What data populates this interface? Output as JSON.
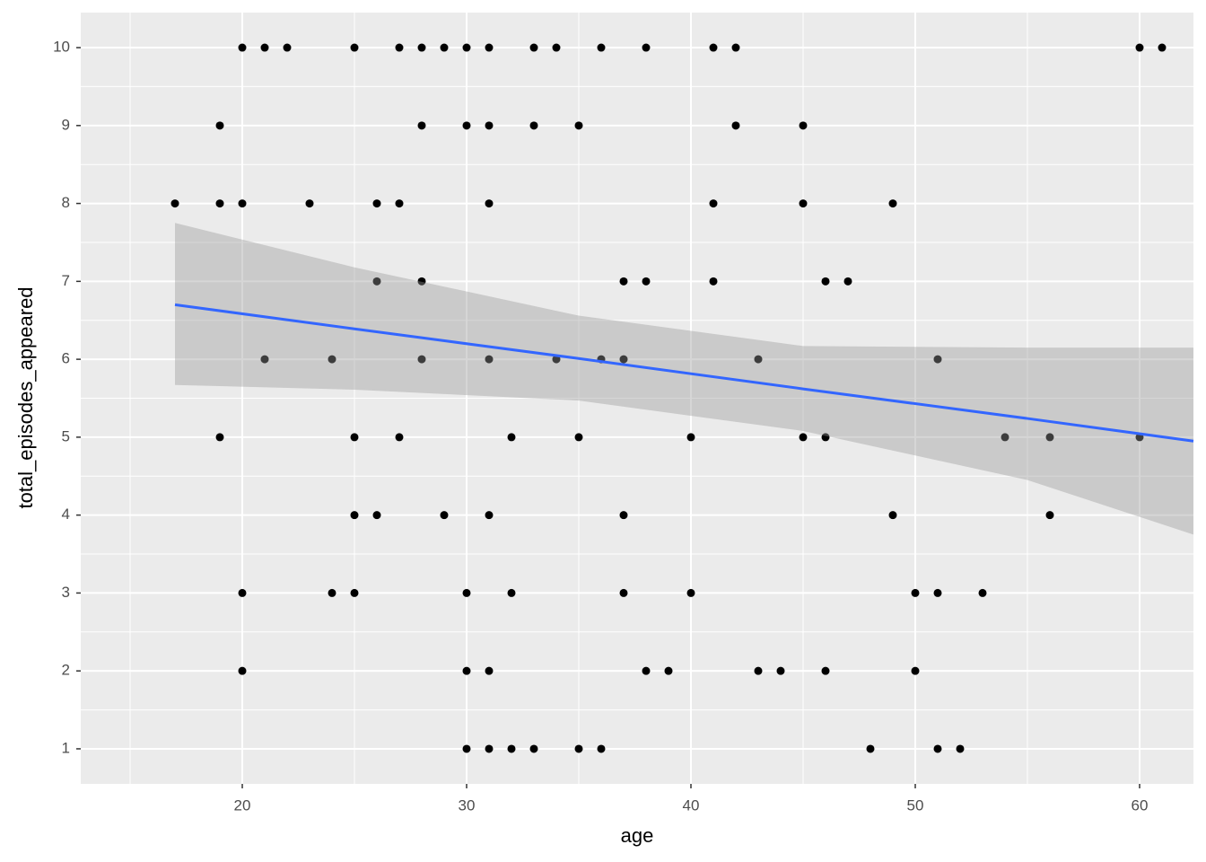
{
  "chart_data": {
    "type": "scatter",
    "x_label": "age",
    "y_label": "total_episodes_appeared",
    "x": [
      20,
      21,
      22,
      25,
      27,
      28,
      29,
      30,
      31,
      33,
      34,
      36,
      38,
      41,
      42,
      60,
      61,
      19,
      28,
      30,
      31,
      33,
      35,
      42,
      45,
      17,
      19,
      20,
      23,
      26,
      27,
      31,
      41,
      45,
      49,
      26,
      28,
      37,
      38,
      41,
      46,
      47,
      21,
      24,
      28,
      31,
      34,
      36,
      37,
      43,
      51,
      19,
      25,
      27,
      32,
      35,
      40,
      45,
      46,
      54,
      56,
      60,
      25,
      26,
      29,
      31,
      37,
      49,
      56,
      20,
      24,
      25,
      30,
      32,
      37,
      40,
      50,
      51,
      53,
      20,
      30,
      31,
      38,
      39,
      43,
      44,
      46,
      50,
      30,
      31,
      32,
      33,
      35,
      36,
      48,
      51,
      52
    ],
    "values": [
      10,
      10,
      10,
      10,
      10,
      10,
      10,
      10,
      10,
      10,
      10,
      10,
      10,
      10,
      10,
      10,
      10,
      9,
      9,
      9,
      9,
      9,
      9,
      9,
      9,
      8,
      8,
      8,
      8,
      8,
      8,
      8,
      8,
      8,
      8,
      7,
      7,
      7,
      7,
      7,
      7,
      7,
      6,
      6,
      6,
      6,
      6,
      6,
      6,
      6,
      6,
      5,
      5,
      5,
      5,
      5,
      5,
      5,
      5,
      5,
      5,
      5,
      4,
      4,
      4,
      4,
      4,
      4,
      4,
      3,
      3,
      3,
      3,
      3,
      3,
      3,
      3,
      3,
      3,
      2,
      2,
      2,
      2,
      2,
      2,
      2,
      2,
      2,
      1,
      1,
      1,
      1,
      1,
      1,
      1,
      1,
      1
    ],
    "color": "#000000",
    "smooth": {
      "x": [
        17,
        25,
        35,
        45,
        55,
        62.4
      ],
      "values": [
        6.7,
        6.39,
        6.01,
        5.62,
        5.24,
        4.95
      ],
      "lower": [
        5.67,
        5.61,
        5.47,
        5.08,
        4.45,
        3.75
      ],
      "upper": [
        7.75,
        7.18,
        6.56,
        6.17,
        6.15,
        6.15
      ],
      "color": "#3366ff",
      "band_color": "#999999"
    },
    "xlim": [
      12.8,
      62.4
    ],
    "ylim": [
      0.55,
      10.45
    ],
    "xticks": [
      20,
      30,
      40,
      50,
      60
    ],
    "yticks": [
      1,
      2,
      3,
      4,
      5,
      6,
      7,
      8,
      9,
      10
    ],
    "xticks_minor": [
      15,
      25,
      35,
      45,
      55
    ],
    "yticks_minor": [
      1.5,
      2.5,
      3.5,
      4.5,
      5.5,
      6.5,
      7.5,
      8.5,
      9.5
    ],
    "grid": true
  }
}
